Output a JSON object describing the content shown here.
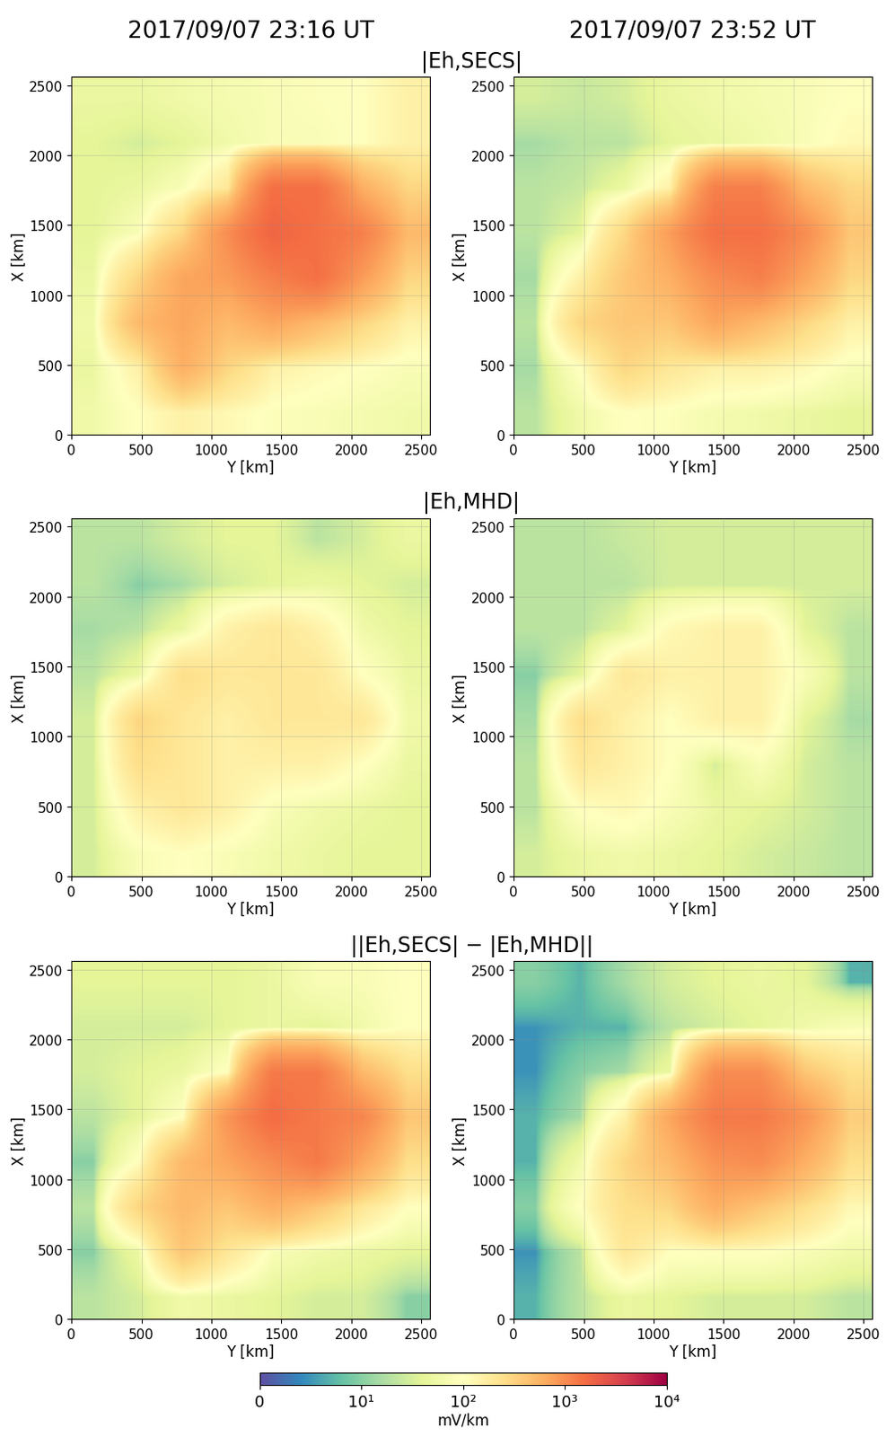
{
  "figure": {
    "column_titles": [
      "2017/09/07 23:16 UT",
      "2017/09/07 23:52 UT"
    ],
    "row_titles": [
      "|Eh,SECS|",
      "|Eh,MHD|",
      "||Eh,SECS| − |Eh,MHD||"
    ],
    "colorbar_label": "mV/km",
    "colorbar_range": [
      1,
      10000
    ],
    "colorbar_ticks": [
      {
        "value": 1,
        "label": "0"
      },
      {
        "value": 10,
        "label": "10¹"
      },
      {
        "value": 100,
        "label": "10²"
      },
      {
        "value": 1000,
        "label": "10³"
      },
      {
        "value": 10000,
        "label": "10⁴"
      }
    ],
    "log": true
  },
  "chart_data": [
    {
      "type": "heatmap",
      "xlabel": "Y [km]",
      "ylabel": "X [km]",
      "xlim": [
        0,
        2560
      ],
      "ylim": [
        0,
        2560
      ],
      "xticks": [
        0,
        500,
        1000,
        1500,
        2000,
        2500
      ],
      "yticks": [
        0,
        500,
        1000,
        1500,
        2000,
        2500
      ],
      "grid": true,
      "cells": [
        [
          60,
          100,
          150,
          120,
          90,
          80,
          70,
          60
        ],
        [
          50,
          150,
          600,
          300,
          150,
          120,
          100,
          80
        ],
        [
          60,
          500,
          700,
          500,
          700,
          500,
          300,
          150
        ],
        [
          50,
          300,
          700,
          800,
          1200,
          1500,
          800,
          300
        ],
        [
          40,
          80,
          300,
          1000,
          1800,
          1500,
          1200,
          500
        ],
        [
          40,
          50,
          80,
          200,
          1500,
          1500,
          600,
          300
        ],
        [
          40,
          30,
          40,
          60,
          80,
          80,
          100,
          150
        ],
        [
          50,
          50,
          60,
          70,
          80,
          90,
          100,
          150
        ]
      ]
    },
    {
      "type": "heatmap",
      "xlabel": "Y [km]",
      "ylabel": "X [km]",
      "xlim": [
        0,
        2560
      ],
      "ylim": [
        0,
        2560
      ],
      "xticks": [
        0,
        500,
        1000,
        1500,
        2000,
        2500
      ],
      "yticks": [
        0,
        500,
        1000,
        1500,
        2000,
        2500
      ],
      "grid": true,
      "cells": [
        [
          20,
          60,
          100,
          90,
          70,
          60,
          50,
          40
        ],
        [
          15,
          100,
          300,
          200,
          150,
          150,
          120,
          80
        ],
        [
          20,
          300,
          400,
          400,
          700,
          500,
          300,
          150
        ],
        [
          15,
          150,
          400,
          600,
          1000,
          1200,
          700,
          300
        ],
        [
          20,
          40,
          300,
          800,
          1500,
          1500,
          1000,
          400
        ],
        [
          20,
          25,
          50,
          150,
          1200,
          1200,
          500,
          300
        ],
        [
          15,
          20,
          20,
          40,
          50,
          60,
          80,
          120
        ],
        [
          30,
          25,
          30,
          50,
          60,
          70,
          80,
          100
        ]
      ]
    },
    {
      "type": "heatmap",
      "xlabel": "Y [km]",
      "ylabel": "X [km]",
      "xlim": [
        0,
        2560
      ],
      "ylim": [
        0,
        2560
      ],
      "xticks": [
        0,
        500,
        1000,
        1500,
        2000,
        2500
      ],
      "yticks": [
        0,
        500,
        1000,
        1500,
        2000,
        2500
      ],
      "grid": true,
      "cells": [
        [
          30,
          80,
          100,
          80,
          60,
          50,
          40,
          40
        ],
        [
          30,
          150,
          200,
          150,
          80,
          60,
          50,
          40
        ],
        [
          30,
          250,
          200,
          150,
          150,
          150,
          100,
          50
        ],
        [
          30,
          300,
          200,
          150,
          200,
          200,
          200,
          60
        ],
        [
          20,
          50,
          250,
          200,
          200,
          200,
          100,
          50
        ],
        [
          15,
          20,
          50,
          150,
          200,
          150,
          60,
          40
        ],
        [
          20,
          10,
          15,
          30,
          40,
          50,
          40,
          30
        ],
        [
          20,
          20,
          30,
          40,
          40,
          20,
          30,
          50
        ]
      ]
    },
    {
      "type": "heatmap",
      "xlabel": "Y [km]",
      "ylabel": "X [km]",
      "xlim": [
        0,
        2560
      ],
      "ylim": [
        0,
        2560
      ],
      "xticks": [
        0,
        500,
        1000,
        1500,
        2000,
        2500
      ],
      "yticks": [
        0,
        500,
        1000,
        1500,
        2000,
        2500
      ],
      "grid": true,
      "cells": [
        [
          30,
          50,
          60,
          50,
          40,
          30,
          25,
          20
        ],
        [
          20,
          100,
          120,
          80,
          50,
          40,
          30,
          20
        ],
        [
          20,
          200,
          150,
          100,
          30,
          80,
          30,
          20
        ],
        [
          15,
          250,
          150,
          100,
          150,
          150,
          40,
          15
        ],
        [
          10,
          40,
          200,
          150,
          150,
          150,
          80,
          20
        ],
        [
          20,
          20,
          40,
          120,
          150,
          150,
          40,
          20
        ],
        [
          20,
          20,
          20,
          30,
          30,
          30,
          30,
          30
        ],
        [
          20,
          20,
          25,
          30,
          30,
          30,
          30,
          30
        ]
      ]
    },
    {
      "type": "heatmap",
      "xlabel": "Y [km]",
      "ylabel": "X [km]",
      "xlim": [
        0,
        2560
      ],
      "ylim": [
        0,
        2560
      ],
      "xticks": [
        0,
        500,
        1000,
        1500,
        2000,
        2500
      ],
      "yticks": [
        0,
        500,
        1000,
        1500,
        2000,
        2500
      ],
      "grid": true,
      "cells": [
        [
          20,
          30,
          60,
          50,
          40,
          30,
          30,
          10
        ],
        [
          10,
          50,
          400,
          200,
          80,
          60,
          50,
          40
        ],
        [
          20,
          300,
          500,
          400,
          600,
          400,
          200,
          100
        ],
        [
          10,
          100,
          500,
          700,
          1000,
          1300,
          700,
          250
        ],
        [
          20,
          40,
          100,
          900,
          1600,
          1300,
          1100,
          400
        ],
        [
          30,
          40,
          50,
          100,
          1300,
          1300,
          500,
          250
        ],
        [
          30,
          30,
          30,
          40,
          50,
          40,
          60,
          100
        ],
        [
          40,
          40,
          40,
          40,
          50,
          80,
          80,
          100
        ]
      ]
    },
    {
      "type": "heatmap",
      "xlabel": "Y [km]",
      "ylabel": "X [km]",
      "xlim": [
        0,
        2560
      ],
      "ylim": [
        0,
        2560
      ],
      "xticks": [
        0,
        500,
        1000,
        1500,
        2000,
        2500
      ],
      "yticks": [
        0,
        500,
        1000,
        1500,
        2000,
        2500
      ],
      "grid": true,
      "cells": [
        [
          5,
          20,
          50,
          40,
          30,
          30,
          30,
          20
        ],
        [
          3,
          20,
          200,
          100,
          100,
          100,
          80,
          60
        ],
        [
          10,
          100,
          250,
          300,
          600,
          400,
          250,
          120
        ],
        [
          5,
          60,
          300,
          500,
          900,
          1000,
          600,
          250
        ],
        [
          5,
          15,
          150,
          700,
          1300,
          1300,
          900,
          350
        ],
        [
          3,
          10,
          15,
          50,
          1000,
          1000,
          400,
          250
        ],
        [
          3,
          5,
          5,
          20,
          30,
          40,
          60,
          80
        ],
        [
          10,
          5,
          15,
          30,
          40,
          50,
          40,
          5
        ]
      ]
    }
  ]
}
